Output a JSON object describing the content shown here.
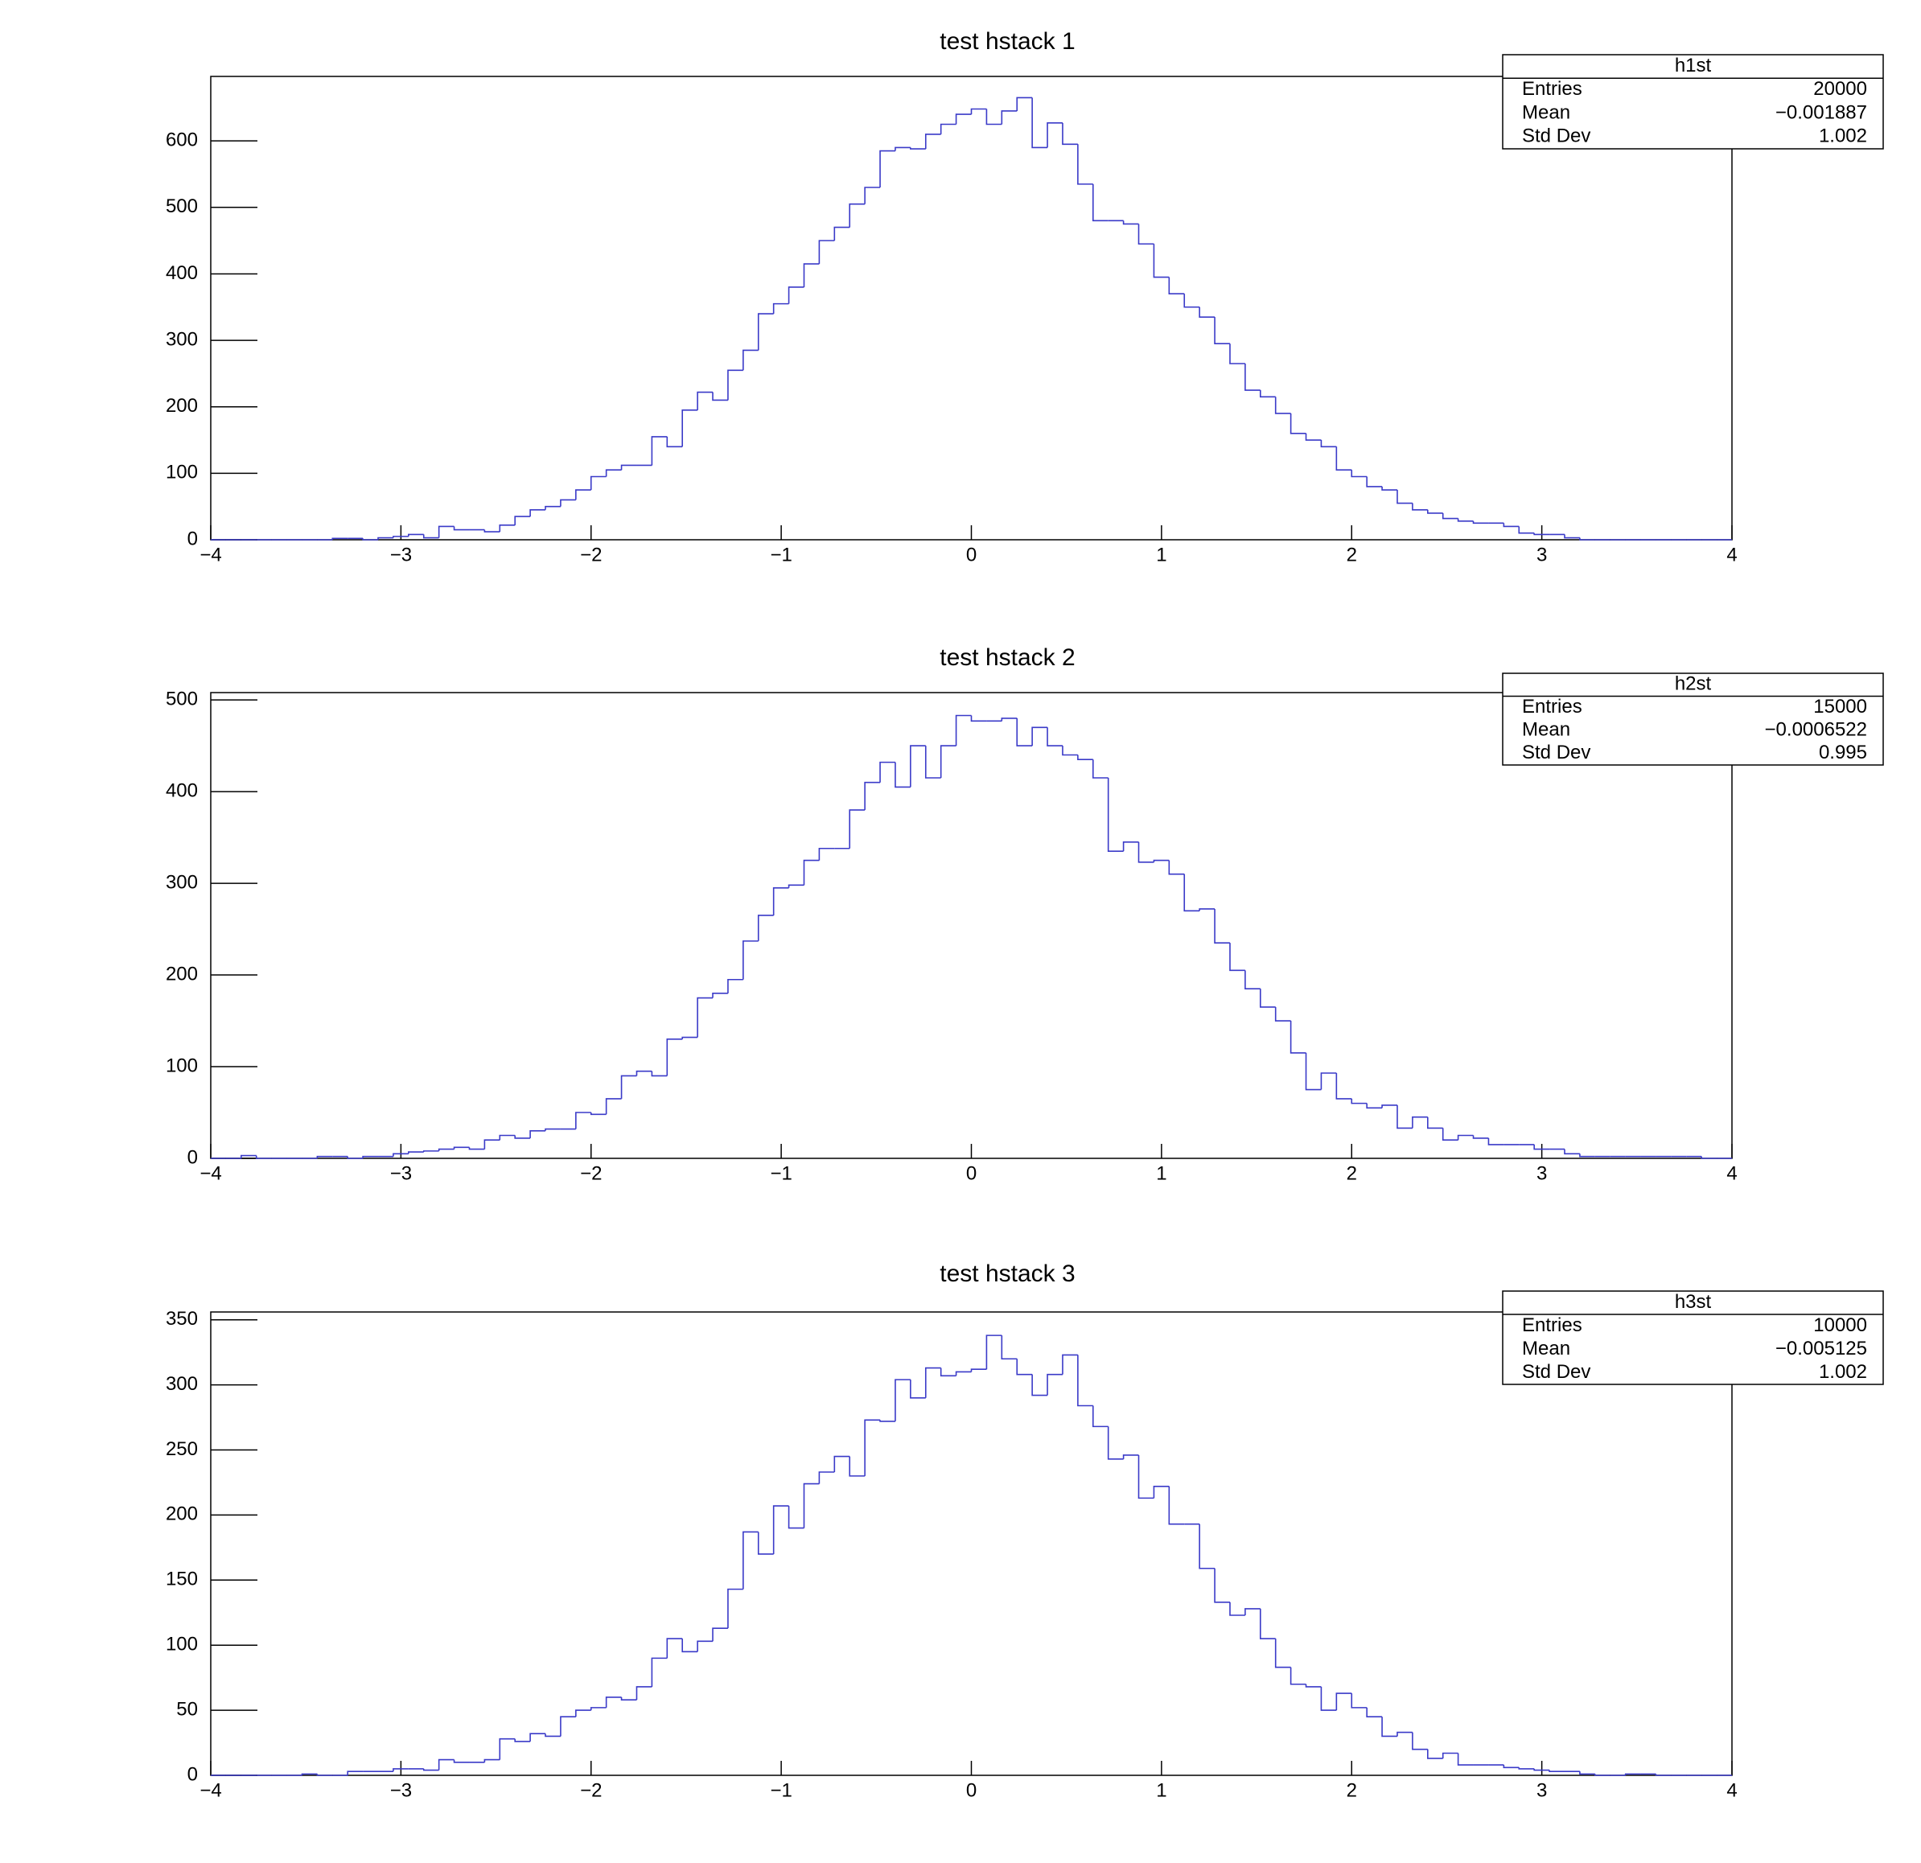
{
  "chart_data": [
    {
      "type": "histogram",
      "title": "test hstack 1",
      "color": "#3a3ac8",
      "bins": [
        -4,
        -3.92,
        -3.84,
        -3.76,
        -3.68,
        -3.6,
        -3.52,
        -3.44,
        -3.36,
        -3.28,
        -3.2,
        -3.12,
        -3.04,
        -2.96,
        -2.88,
        -2.8,
        -2.72,
        -2.64,
        -2.56,
        -2.48,
        -2.4,
        -2.32,
        -2.24,
        -2.16,
        -2.08,
        -2,
        -1.92,
        -1.84,
        -1.76,
        -1.68,
        -1.6,
        -1.52,
        -1.44,
        -1.36,
        -1.28,
        -1.2,
        -1.12,
        -1.04,
        -0.96,
        -0.88,
        -0.8,
        -0.72,
        -0.64,
        -0.56,
        -0.48,
        -0.4,
        -0.32,
        -0.24,
        -0.16,
        -0.08,
        0,
        0.08,
        0.16,
        0.24,
        0.32,
        0.4,
        0.48,
        0.56,
        0.64,
        0.72,
        0.8,
        0.88,
        0.96,
        1.04,
        1.12,
        1.2,
        1.28,
        1.36,
        1.44,
        1.52,
        1.6,
        1.68,
        1.76,
        1.84,
        1.92,
        2,
        2.08,
        2.16,
        2.24,
        2.32,
        2.4,
        2.48,
        2.56,
        2.64,
        2.72,
        2.8,
        2.88,
        2.96,
        3.04,
        3.12,
        3.2,
        3.28,
        3.36,
        3.44,
        3.52,
        3.6,
        3.68,
        3.76,
        3.84,
        3.92,
        4
      ],
      "values": [
        0,
        0,
        0,
        0,
        0,
        0,
        0,
        0,
        2,
        2,
        0,
        3,
        5,
        8,
        3,
        20,
        15,
        15,
        12,
        22,
        35,
        45,
        50,
        60,
        75,
        95,
        105,
        112,
        112,
        155,
        140,
        195,
        222,
        210,
        255,
        285,
        340,
        355,
        380,
        415,
        450,
        470,
        505,
        530,
        585,
        590,
        588,
        610,
        625,
        640,
        648,
        625,
        645,
        665,
        590,
        627,
        595,
        535,
        480,
        480,
        475,
        445,
        395,
        370,
        350,
        335,
        295,
        265,
        225,
        215,
        190,
        160,
        150,
        140,
        105,
        95,
        80,
        75,
        55,
        45,
        40,
        32,
        28,
        25,
        25,
        20,
        10,
        8,
        8,
        3,
        0,
        0,
        0,
        0,
        0,
        0,
        0,
        0,
        0,
        0
      ],
      "xlim": [
        -4,
        4
      ],
      "xticks": [
        {
          "value": -4,
          "label": "−4"
        },
        {
          "value": -3,
          "label": "−3"
        },
        {
          "value": -2,
          "label": "−2"
        },
        {
          "value": -1,
          "label": "−1"
        },
        0,
        1,
        2,
        3,
        4
      ],
      "ylim": [
        0,
        697
      ],
      "yticks": [
        0,
        100,
        200,
        300,
        400,
        500,
        600
      ],
      "stats": {
        "title": "h1st",
        "rows": [
          [
            "Entries",
            "20000"
          ],
          [
            "Mean",
            "−0.001887"
          ],
          [
            "Std Dev",
            "1.002"
          ]
        ]
      }
    },
    {
      "type": "histogram",
      "title": "test hstack 2",
      "color": "#3a3ac8",
      "bins": [
        -4,
        -3.92,
        -3.84,
        -3.76,
        -3.68,
        -3.6,
        -3.52,
        -3.44,
        -3.36,
        -3.28,
        -3.2,
        -3.12,
        -3.04,
        -2.96,
        -2.88,
        -2.8,
        -2.72,
        -2.64,
        -2.56,
        -2.48,
        -2.4,
        -2.32,
        -2.24,
        -2.16,
        -2.08,
        -2,
        -1.92,
        -1.84,
        -1.76,
        -1.68,
        -1.6,
        -1.52,
        -1.44,
        -1.36,
        -1.28,
        -1.2,
        -1.12,
        -1.04,
        -0.96,
        -0.88,
        -0.8,
        -0.72,
        -0.64,
        -0.56,
        -0.48,
        -0.4,
        -0.32,
        -0.24,
        -0.16,
        -0.08,
        0,
        0.08,
        0.16,
        0.24,
        0.32,
        0.4,
        0.48,
        0.56,
        0.64,
        0.72,
        0.8,
        0.88,
        0.96,
        1.04,
        1.12,
        1.2,
        1.28,
        1.36,
        1.44,
        1.52,
        1.6,
        1.68,
        1.76,
        1.84,
        1.92,
        2,
        2.08,
        2.16,
        2.24,
        2.32,
        2.4,
        2.48,
        2.56,
        2.64,
        2.72,
        2.8,
        2.88,
        2.96,
        3.04,
        3.12,
        3.2,
        3.28,
        3.36,
        3.44,
        3.52,
        3.6,
        3.68,
        3.76,
        3.84,
        3.92,
        4
      ],
      "values": [
        0,
        0,
        3,
        0,
        0,
        0,
        0,
        2,
        2,
        0,
        2,
        2,
        5,
        7,
        8,
        10,
        12,
        10,
        20,
        25,
        22,
        30,
        32,
        32,
        50,
        48,
        65,
        90,
        95,
        90,
        130,
        132,
        175,
        180,
        195,
        237,
        265,
        295,
        298,
        325,
        338,
        338,
        380,
        410,
        432,
        405,
        450,
        415,
        450,
        483,
        477,
        477,
        480,
        450,
        470,
        450,
        440,
        435,
        415,
        335,
        345,
        323,
        325,
        310,
        270,
        272,
        235,
        205,
        185,
        165,
        150,
        115,
        75,
        93,
        65,
        60,
        55,
        58,
        33,
        45,
        33,
        20,
        25,
        22,
        15,
        15,
        15,
        10,
        10,
        5,
        2,
        2,
        2,
        2,
        2,
        2,
        2,
        2,
        0,
        0
      ],
      "xlim": [
        -4,
        4
      ],
      "xticks": [
        {
          "value": -4,
          "label": "−4"
        },
        {
          "value": -3,
          "label": "−3"
        },
        {
          "value": -2,
          "label": "−2"
        },
        {
          "value": -1,
          "label": "−1"
        },
        0,
        1,
        2,
        3,
        4
      ],
      "ylim": [
        0,
        508
      ],
      "yticks": [
        0,
        100,
        200,
        300,
        400,
        500
      ],
      "stats": {
        "title": "h2st",
        "rows": [
          [
            "Entries",
            "15000"
          ],
          [
            "Mean",
            "−0.0006522"
          ],
          [
            "Std Dev",
            "0.995"
          ]
        ]
      }
    },
    {
      "type": "histogram",
      "title": "test hstack 3",
      "color": "#3a3ac8",
      "bins": [
        -4,
        -3.92,
        -3.84,
        -3.76,
        -3.68,
        -3.6,
        -3.52,
        -3.44,
        -3.36,
        -3.28,
        -3.2,
        -3.12,
        -3.04,
        -2.96,
        -2.88,
        -2.8,
        -2.72,
        -2.64,
        -2.56,
        -2.48,
        -2.4,
        -2.32,
        -2.24,
        -2.16,
        -2.08,
        -2,
        -1.92,
        -1.84,
        -1.76,
        -1.68,
        -1.6,
        -1.52,
        -1.44,
        -1.36,
        -1.28,
        -1.2,
        -1.12,
        -1.04,
        -0.96,
        -0.88,
        -0.8,
        -0.72,
        -0.64,
        -0.56,
        -0.48,
        -0.4,
        -0.32,
        -0.24,
        -0.16,
        -0.08,
        0,
        0.08,
        0.16,
        0.24,
        0.32,
        0.4,
        0.48,
        0.56,
        0.64,
        0.72,
        0.8,
        0.88,
        0.96,
        1.04,
        1.12,
        1.2,
        1.28,
        1.36,
        1.44,
        1.52,
        1.6,
        1.68,
        1.76,
        1.84,
        1.92,
        2,
        2.08,
        2.16,
        2.24,
        2.32,
        2.4,
        2.48,
        2.56,
        2.64,
        2.72,
        2.8,
        2.88,
        2.96,
        3.04,
        3.12,
        3.2,
        3.28,
        3.36,
        3.44,
        3.52,
        3.6,
        3.68,
        3.76,
        3.84,
        3.92,
        4
      ],
      "values": [
        0,
        0,
        0,
        0,
        0,
        0,
        1,
        0,
        0,
        3,
        3,
        3,
        5,
        5,
        4,
        12,
        10,
        10,
        12,
        28,
        26,
        32,
        30,
        45,
        50,
        52,
        60,
        58,
        68,
        90,
        105,
        95,
        103,
        113,
        143,
        187,
        170,
        207,
        190,
        224,
        233,
        245,
        230,
        273,
        272,
        304,
        290,
        313,
        307,
        310,
        312,
        338,
        320,
        308,
        292,
        308,
        323,
        284,
        268,
        243,
        246,
        213,
        222,
        193,
        193,
        159,
        133,
        123,
        128,
        105,
        83,
        70,
        68,
        50,
        63,
        52,
        45,
        30,
        33,
        20,
        13,
        17,
        8,
        8,
        8,
        6,
        5,
        4,
        3,
        3,
        1,
        0,
        0,
        1,
        1,
        0,
        0,
        0,
        0,
        0
      ],
      "xlim": [
        -4,
        4
      ],
      "xticks": [
        {
          "value": -4,
          "label": "−4"
        },
        {
          "value": -3,
          "label": "−3"
        },
        {
          "value": -2,
          "label": "−2"
        },
        {
          "value": -1,
          "label": "−1"
        },
        0,
        1,
        2,
        3,
        4
      ],
      "ylim": [
        0,
        356
      ],
      "yticks": [
        0,
        50,
        100,
        150,
        200,
        250,
        300,
        350
      ],
      "stats": {
        "title": "h3st",
        "rows": [
          [
            "Entries",
            "10000"
          ],
          [
            "Mean",
            "−0.005125"
          ],
          [
            "Std Dev",
            "1.002"
          ]
        ]
      }
    }
  ]
}
